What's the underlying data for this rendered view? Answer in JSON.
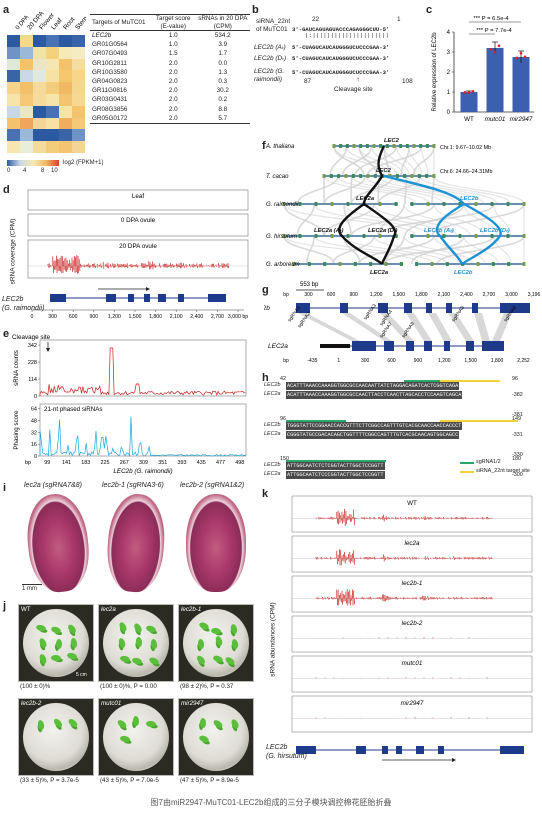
{
  "caption": "图7由miR2947-MuTC01-LEC2b组成的三分子模块调控棉花胚胎折叠",
  "panel_labels": [
    "a",
    "b",
    "c",
    "d",
    "e",
    "f",
    "g",
    "h",
    "i",
    "j",
    "k"
  ],
  "a": {
    "tissues": [
      "0 DPA",
      "20 DPA",
      "Flower",
      "Leaf",
      "Root",
      "Stem"
    ],
    "col_headers": [
      "Targets of MuTC01",
      "Target score (E-value)",
      "sRNAs in 20 DPA (CPM)"
    ],
    "rows": [
      {
        "target": "LEC2b",
        "score": "1.0",
        "srna": "534.2"
      },
      {
        "target": "GR01G0564",
        "score": "1.0",
        "srna": "3.9"
      },
      {
        "target": "GR07G0493",
        "score": "1.5",
        "srna": "1.7"
      },
      {
        "target": "GR10G2811",
        "score": "2.0",
        "srna": "0.0"
      },
      {
        "target": "GR10G3580",
        "score": "2.0",
        "srna": "1.3"
      },
      {
        "target": "GR04G0823",
        "score": "2.0",
        "srna": "0.3"
      },
      {
        "target": "GR11G0816",
        "score": "2.0",
        "srna": "30.2"
      },
      {
        "target": "GR03G0431",
        "score": "2.0",
        "srna": "0.2"
      },
      {
        "target": "GR08G3856",
        "score": "2.0",
        "srna": "8.8"
      },
      {
        "target": "GR05G0172",
        "score": "2.0",
        "srna": "5.7"
      }
    ],
    "heat_colors": [
      [
        "#2c5aa0",
        "#f3d98a",
        "#2c5aa0",
        "#4872b4",
        "#2c5aa0",
        "#3a64a8"
      ],
      [
        "#6d93c7",
        "#9cb8d9",
        "#f1e3a6",
        "#f4d27a",
        "#f7e9b5",
        "#f6ecc4"
      ],
      [
        "#dfe7d6",
        "#f3c26a",
        "#e9e5c5",
        "#f6e7b2",
        "#f3c26a",
        "#f5dca0"
      ],
      [
        "#3a64a8",
        "#c9d8e6",
        "#e0eadc",
        "#f7e2a4",
        "#f5c86e",
        "#f7d58a"
      ],
      [
        "#f6d48a",
        "#f3c06a",
        "#f5da9a",
        "#f4cd7c",
        "#f1b964",
        "#f5d690"
      ],
      [
        "#f7e4a8",
        "#f4c877",
        "#f6dc9c",
        "#f7e4a8",
        "#f3c571",
        "#f6d890"
      ],
      [
        "#c9d8e6",
        "#e9e7c4",
        "#2c5aa0",
        "#4872b4",
        "#f7e3a6",
        "#f3c36d"
      ],
      [
        "#f3c26a",
        "#f0a65a",
        "#f5d597",
        "#f7e2a4",
        "#f1ad5e",
        "#f4c877"
      ],
      [
        "#4872b4",
        "#9cb8d9",
        "#2c5aa0",
        "#2c5aa0",
        "#3a64a8",
        "#6d93c7"
      ],
      [
        "#f7e6b0",
        "#e8eed8",
        "#f6dc9c",
        "#f4cd7c",
        "#f3c571",
        "#f5d597"
      ]
    ],
    "legend_ticks": [
      "0",
      "4",
      "8",
      "10"
    ],
    "legend_label": "log2 (FPKM+1)"
  },
  "b": {
    "label1": "siRNA_22nt",
    "label1b": "of MuTC01",
    "pos_left": "22",
    "pos_right": "1",
    "srna_seq": "3'-GAUCAGUAGUACCCAGAGGGCUU-5'",
    "lec2b_a": "LEC2b (Aₜ)",
    "lec2b_d": "LEC2b (Dₜ)",
    "lec2b_g": "LEC2b (G.",
    "raimondii": "raimondii)",
    "seq_a": "5'-CUAGUCAUCAUGGGUCUCCCGAA-3'",
    "seq_d": "5'-CUAGUCAUCAUGGGUCUCCCGAA-3'",
    "seq_g": "5'-CUAGUCAUCAUGGGUCUCCCGAA-3'",
    "num_left": "87",
    "num_right": "108",
    "cleavage": "Cleavage site"
  },
  "c": {
    "ylabel": "Relative expression of LEC2b",
    "yticks": [
      "0",
      "1",
      "2",
      "3",
      "4"
    ],
    "pval1": "P = 6.5e-4",
    "pval2": "P = 7.7e-4",
    "stars": "***"
  },
  "chart_data": {
    "type": "bar",
    "categories": [
      "WT",
      "mutc01",
      "mir2947"
    ],
    "values": [
      1.0,
      3.2,
      2.75
    ],
    "errors": [
      0.05,
      0.3,
      0.3
    ],
    "ylabel": "Relative expression of LEC2b",
    "ylim": [
      0,
      4
    ],
    "colors": [
      "#3d5fb0",
      "#3d5fb0",
      "#3d5fb0"
    ]
  },
  "d": {
    "ylabel": "sRNA coverage (CPM)",
    "tracks": [
      "Leaf",
      "0 DPA ovule",
      "20 DPA ovule"
    ],
    "gene": "LEC2b",
    "gene_sub": "(G. raimondii)",
    "ticks": [
      "0",
      "300",
      "600",
      "900",
      "1,200",
      "1,500",
      "1,800",
      "2,100",
      "2,400",
      "2,700",
      "3,000 bp"
    ]
  },
  "e": {
    "cleavage": "Cleavage site",
    "ylabel_top": "sRNA counts",
    "yticks_top": [
      "0",
      "114",
      "228",
      "342"
    ],
    "ylabel_bottom": "Phasing score",
    "yticks_bottom": [
      "0",
      "16",
      "32",
      "48",
      "64"
    ],
    "phased_label": "21-nt phased siRNAs",
    "xlabel": "LEC2b (G. raimondii)",
    "xticks": [
      "bp",
      "99",
      "141",
      "183",
      "225",
      "267",
      "309",
      "351",
      "393",
      "435",
      "477",
      "498"
    ]
  },
  "f": {
    "species": [
      "A. thaliana",
      "T. cacao",
      "G. raimondii",
      "G. hirsutum",
      "G. arboreum"
    ],
    "chr1": "Chr.1: 9.67–10.02 Mb",
    "chr6": "Chr.6: 24.66–24.31Mb",
    "labels": [
      "LEC2",
      "LEC2",
      "LEC2a",
      "LEC2b",
      "LEC2a (Aₜ)",
      "LEC2a (Dₜ)",
      "LEC2b (Aₜ)",
      "LEC2b (Dₜ)",
      "LEC2a",
      "LEC2b"
    ]
  },
  "g": {
    "gene1": "LEC2b",
    "gene2": "LEC2a",
    "scale": "553 bp",
    "ticks_top": [
      "bp",
      "300",
      "600",
      "900",
      "1,200",
      "1,500",
      "1,800",
      "2,100",
      "2,400",
      "2,700",
      "3,000",
      "3,196"
    ],
    "ticks_bottom": [
      "bp",
      "-435",
      "1",
      "300",
      "600",
      "900",
      "1,200",
      "1,500",
      "1,800",
      "2,252"
    ],
    "sgrnas": [
      "sgRNA1",
      "sgRNA2",
      "sgRNA3",
      "sgRNA4",
      "sgRNA5",
      "sgRNA6",
      "sgRNA7",
      "sgRNA8"
    ]
  },
  "h": {
    "pos": [
      "42",
      "96",
      "96",
      "149",
      "150",
      "180"
    ],
    "rows": [
      {
        "name": "LEC2b",
        "seq": "ACATTTAAACCAAAGGTGGCGCCAACAATTATCTAGGACAGATCACTCGGTCAGA"
      },
      {
        "name": "LEC2a",
        "seq": "ACATTTAAACCAAAGGTGGCGCCAACTTACCTCAACTTAGCACCTCCAAGTCAGCA"
      },
      {
        "name": "LEC2b",
        "seq": "TGGGTATTCCGGAACCACCGTTTCTTCGGCCAGTTTGTCACGCAACCAACCACCCT"
      },
      {
        "name": "LEC2a",
        "seq": "CGGGTATGCCGACACAGCTGGTTTTCGGCCAGTTTGTCACGCAACAGTGGCAGCC"
      },
      {
        "name": "LEC2b",
        "seq": "ATTGGCAATCTCTCGGTACTTGGCTCCGGTT"
      },
      {
        "name": "LEC2a",
        "seq": "ATTGGCAATCTCCCGGTACTTGGCTCCGGTT"
      }
    ],
    "side_nums": [
      "-382",
      "-381",
      "-331",
      "-330",
      "-300"
    ],
    "legend1": "sgRNA1/2",
    "legend2": "siRNA_22nt target site"
  },
  "i": {
    "labels": [
      "lec2a (sgRNA7&8)",
      "lec2b-1 (sgRNA3-6)",
      "lec2b-2 (sgRNA1&2)"
    ],
    "scale": "1 mm"
  },
  "j": {
    "plates": [
      "WT",
      "lec2a",
      "lec2b-1",
      "lec2b-2",
      "mutc01",
      "mir2947"
    ],
    "captions": [
      "(100 ± 0)%",
      "(100 ± 0)%, P = 0.00",
      "(98 ± 2)%, P = 0.37",
      "(33 ± 5)%, P = 3.7e-5",
      "(43 ± 5)%, P = 7.0e-5",
      "(47 ± 5)%, P = 8.9e-5"
    ],
    "scale": "5 cm"
  },
  "k": {
    "ylabel": "sRNA abundances (CPM)",
    "tracks": [
      "WT",
      "lec2a",
      "lec2b-1",
      "lec2b-2",
      "mutc01",
      "mir2947"
    ],
    "gene": "LEC2b",
    "gene_sub": "(G. hirsutum)"
  }
}
